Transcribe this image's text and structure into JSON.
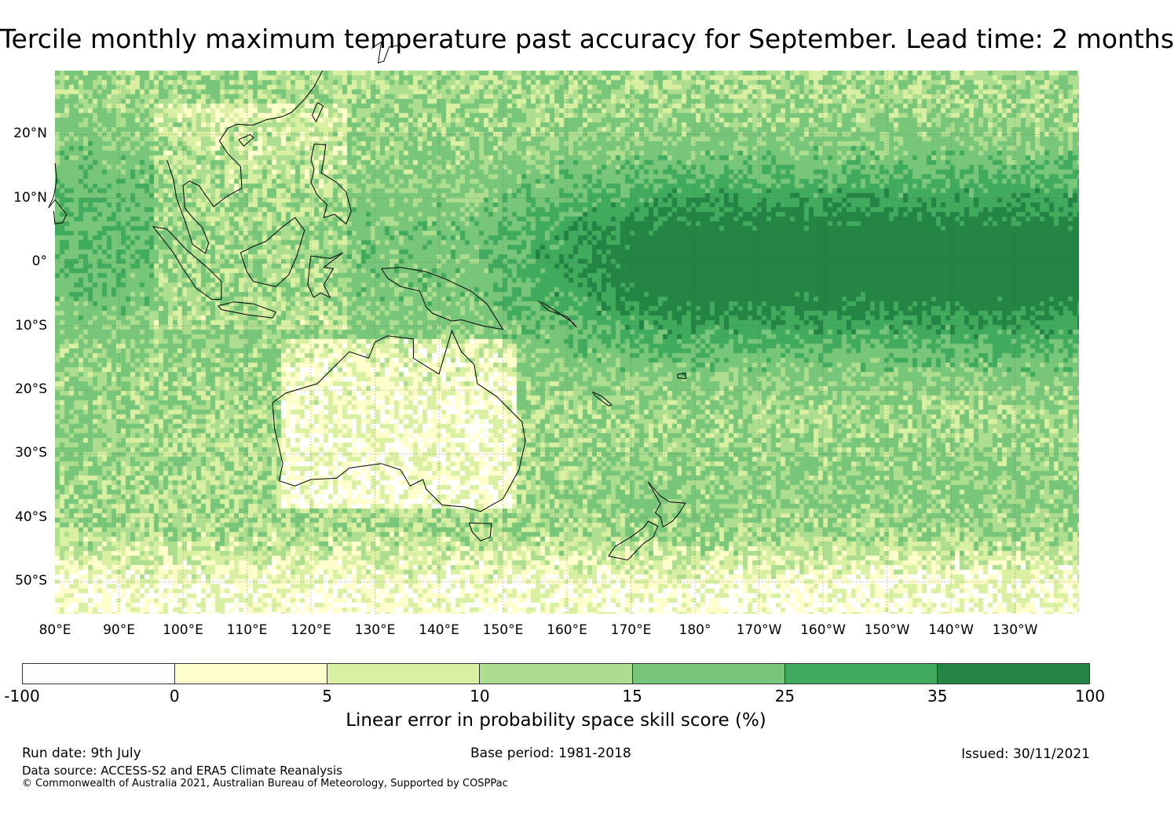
{
  "title": "Tercile monthly maximum temperature past accuracy for September. Lead time: 2 months",
  "map": {
    "lat_labels": [
      "20°N",
      "10°N",
      "0°",
      "10°S",
      "20°S",
      "30°S",
      "40°S",
      "50°S"
    ],
    "lon_labels": [
      "80°E",
      "90°E",
      "100°E",
      "110°E",
      "120°E",
      "130°E",
      "140°E",
      "150°E",
      "160°E",
      "170°E",
      "180°",
      "170°W",
      "160°W",
      "150°W",
      "140°W",
      "130°W"
    ],
    "extent": {
      "lon_min": 80,
      "lon_max": 240,
      "lat_min": -55,
      "lat_max": 30
    }
  },
  "colorbar": {
    "ticks": [
      "-100",
      "0",
      "5",
      "10",
      "15",
      "25",
      "35",
      "100"
    ],
    "colors": [
      "#ffffff",
      "#ffffcc",
      "#d9f0a3",
      "#addd8e",
      "#78c679",
      "#41ab5d",
      "#238443"
    ],
    "label": "Linear error in probability space skill score (%)"
  },
  "footer": {
    "run_date": "Run date: 9th July",
    "base_period": "Base period: 1981-2018",
    "issued": "Issued: 30/11/2021",
    "data_source": "Data source: ACCESS-S2 and ERA5 Climate Reanalysis",
    "copyright": "© Commonwealth of Australia 2021, Australian Bureau of Meteorology, Supported by COSPPac"
  }
}
